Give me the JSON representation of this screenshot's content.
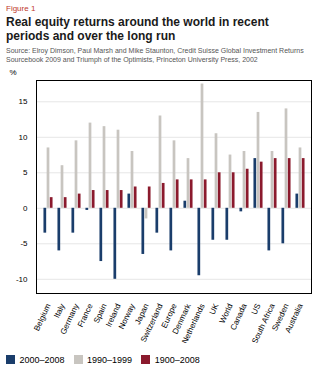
{
  "chart_data": {
    "type": "bar",
    "title": "Real equity returns around the world in recent\nperiods and over the long run",
    "annotations": [
      "Figure 1",
      "Source: Elroy Dimson, Paul Marsh and Mike Staunton, Credit Suisse Global Investment Returns\nSourcebook 2009 and Triumph of the Optimists, Princeton University Press, 2002"
    ],
    "ylabel": "%",
    "categories": [
      "Belgium",
      "Italy",
      "Germany",
      "France",
      "Spain",
      "Ireland",
      "Norway",
      "Japan",
      "Switzerland",
      "Europe",
      "Denmark",
      "Netherlands",
      "UK",
      "World",
      "Canada",
      "US",
      "South Africa",
      "Sweden",
      "Australia"
    ],
    "series": [
      {
        "name": "2000–2008",
        "color": "#1a3d6b",
        "values": [
          -3.5,
          -6.0,
          -3.5,
          -0.3,
          -7.5,
          -10.0,
          2.0,
          -6.5,
          -3.5,
          -6.0,
          1.0,
          -9.5,
          -4.5,
          -4.5,
          -0.5,
          7.0,
          -6.0,
          -5.0,
          2.0
        ]
      },
      {
        "name": "1990–1999",
        "color": "#c8c5c0",
        "values": [
          8.5,
          6.0,
          9.5,
          12.0,
          11.5,
          11.0,
          8.0,
          -1.5,
          13.0,
          9.5,
          7.0,
          17.5,
          10.5,
          7.5,
          8.0,
          13.5,
          8.0,
          14.0,
          8.5
        ]
      },
      {
        "name": "1900–2008",
        "color": "#8b1a2d",
        "values": [
          1.5,
          1.5,
          2.0,
          2.5,
          2.5,
          2.5,
          3.0,
          3.0,
          3.5,
          4.0,
          4.0,
          4.0,
          5.0,
          5.0,
          5.5,
          6.5,
          7.0,
          7.0,
          7.0
        ]
      }
    ],
    "ylim": [
      -12,
      18
    ],
    "yticks": [
      -10,
      -5,
      0,
      5,
      10,
      15
    ],
    "grid": true,
    "legend": "bottom"
  }
}
